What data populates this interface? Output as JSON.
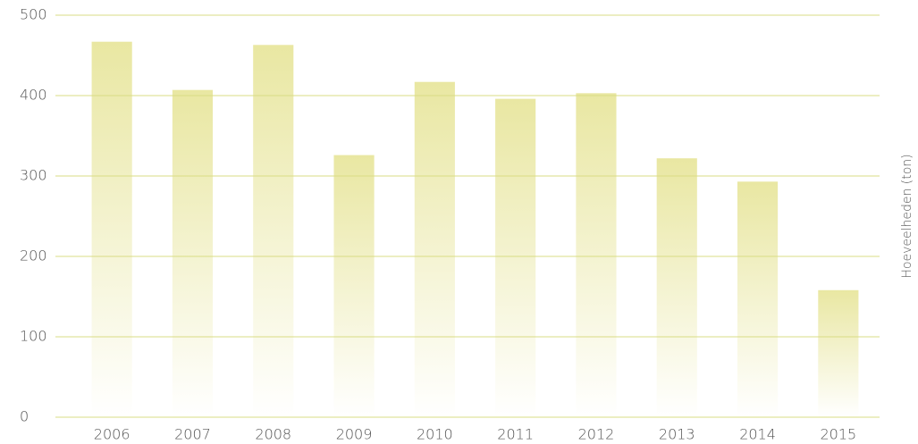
{
  "chart_data": {
    "type": "bar",
    "y_label": "Hoeveelheden (ton)",
    "categories": [
      "2006",
      "2007",
      "2008",
      "2009",
      "2010",
      "2011",
      "2012",
      "2013",
      "2014",
      "2015"
    ],
    "values": [
      467,
      407,
      463,
      326,
      417,
      396,
      403,
      322,
      293,
      158
    ],
    "color": "#e9e7a2",
    "grid_color": "#d9dc84",
    "ylim": [
      0,
      500
    ],
    "yticks": [
      0,
      100,
      200,
      300,
      400,
      500
    ],
    "grid": true
  }
}
